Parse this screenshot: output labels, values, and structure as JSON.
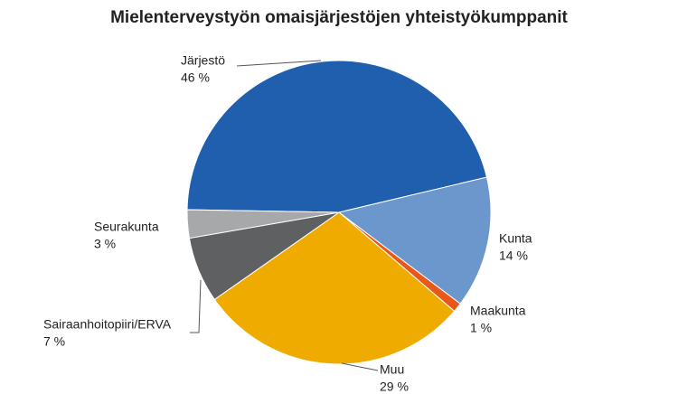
{
  "chart_data": {
    "type": "pie",
    "title": "Mielenterveystyön omaisjärjestöjen yhteistyökumppanit",
    "categories": [
      "Järjestö",
      "Kunta",
      "Maakunta",
      "Muu",
      "Sairaanhoitopiiri/ERVA",
      "Seurakunta"
    ],
    "values": [
      46,
      14,
      1,
      29,
      7,
      3
    ],
    "value_labels": [
      "46 %",
      "14 %",
      "1 %",
      "29 %",
      "7 %",
      "3 %"
    ],
    "colors": [
      "#1f5fad",
      "#6b97cc",
      "#e8581b",
      "#f0ab00",
      "#5f6062",
      "#a6a8aa"
    ]
  }
}
